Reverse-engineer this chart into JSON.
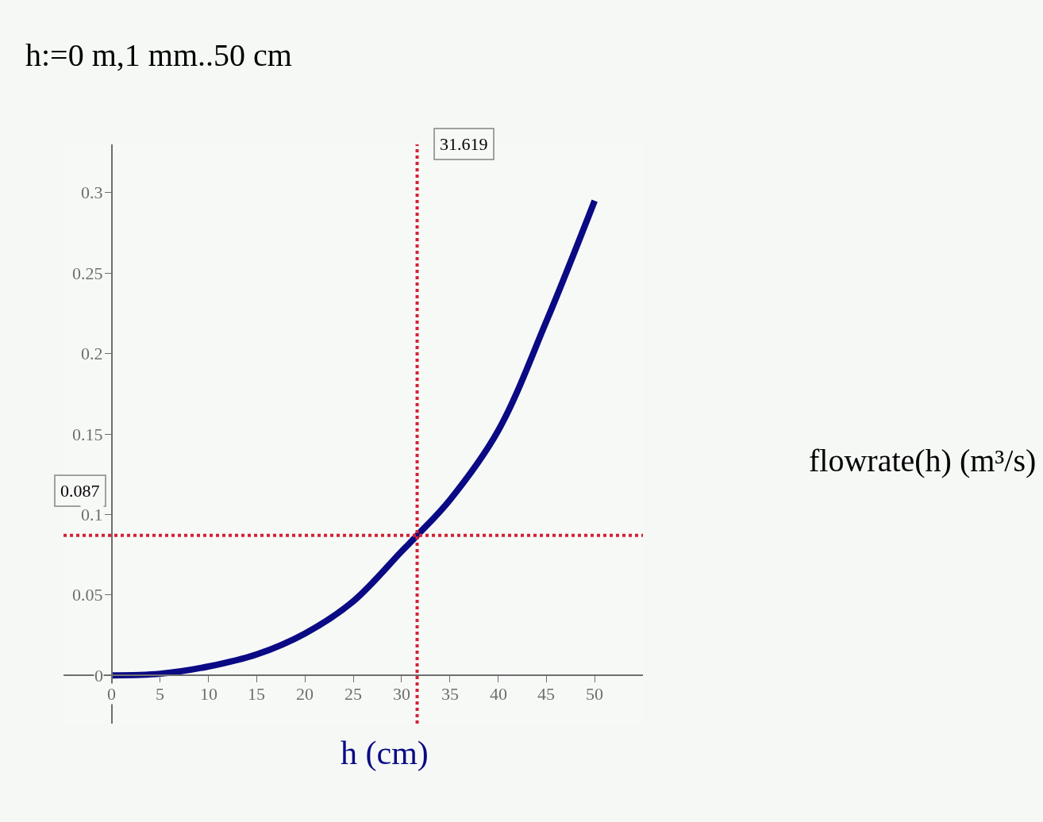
{
  "chart_data": {
    "type": "line",
    "xlabel": "h (cm)",
    "annotations": [
      "h:=0 m,1 mm..50 cm",
      "flowrate(h) (m³/s)"
    ],
    "x": [
      0,
      5,
      10,
      15,
      20,
      25,
      30,
      31.619,
      35,
      40,
      45,
      50
    ],
    "series": [
      {
        "color": "#0a0a85",
        "values": [
          0,
          0.001,
          0.0055,
          0.013,
          0.026,
          0.046,
          0.077,
          0.087,
          0.109,
          0.152,
          0.22,
          0.295
        ]
      }
    ],
    "xlim": [
      -5,
      55
    ],
    "ylim": [
      -0.03,
      0.33
    ],
    "xticks": [
      0,
      5,
      10,
      15,
      20,
      25,
      30,
      35,
      40,
      45,
      50
    ],
    "yticks": [
      0,
      0.05,
      0.1,
      0.15,
      0.2,
      0.25,
      0.3
    ],
    "ref_lines": [
      {
        "axis": "x",
        "value": 31.619,
        "label": "31.619",
        "color": "#d42234",
        "line_style": "dotted"
      },
      {
        "axis": "y",
        "value": 0.087,
        "label": "0.087",
        "color": "#d42234",
        "line_style": "dotted"
      }
    ],
    "grid": false,
    "marker": "none",
    "line_style": "solid"
  }
}
